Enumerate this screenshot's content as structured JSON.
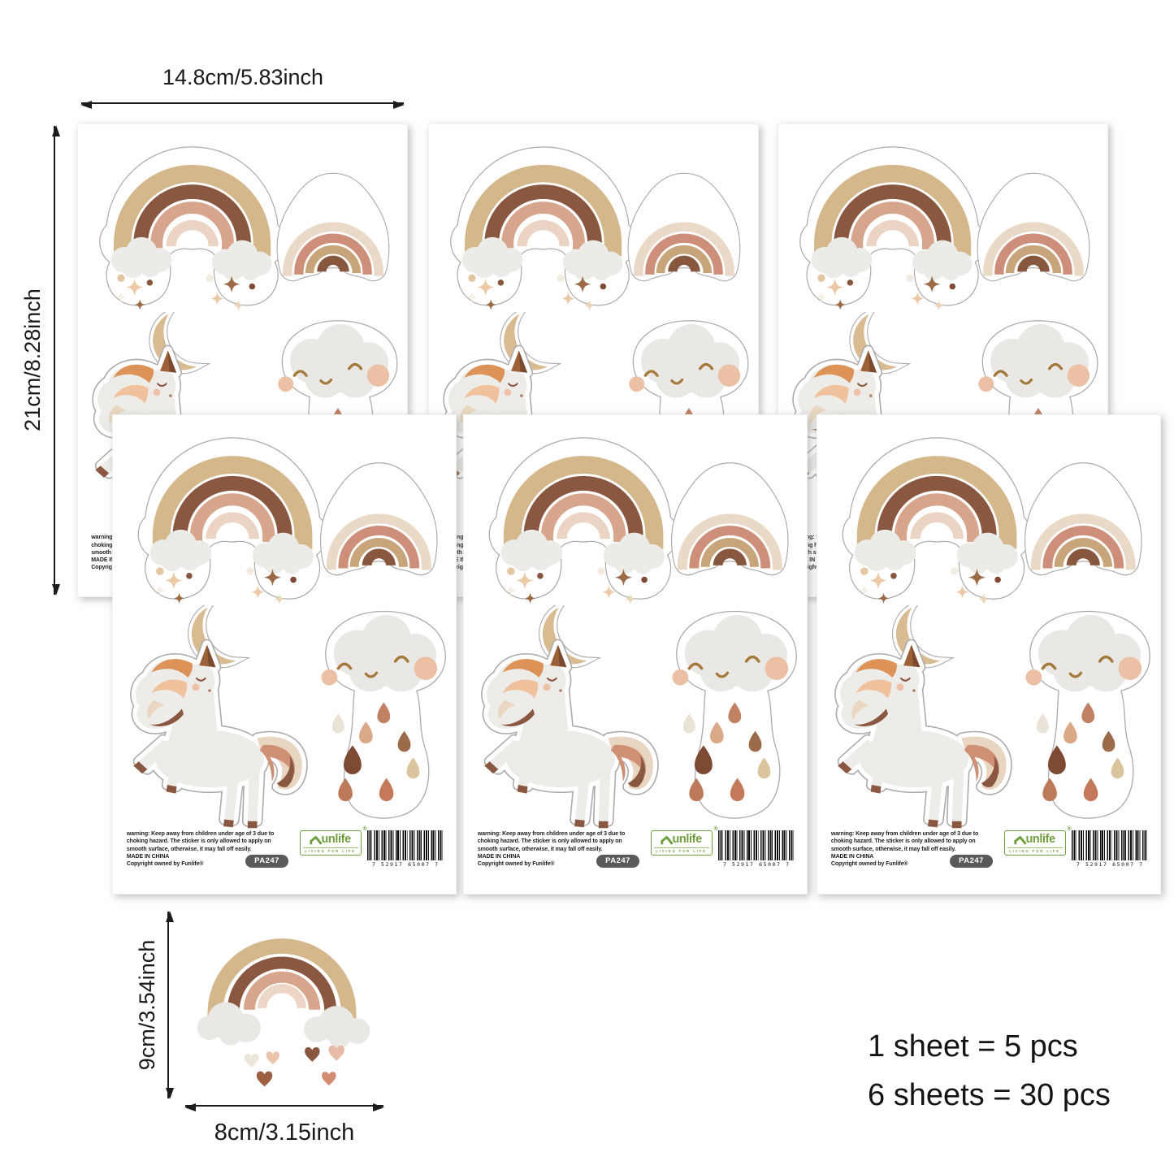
{
  "page": {
    "background": "#ffffff"
  },
  "annotations": {
    "sheet_width_label": "14.8cm/5.83inch",
    "sheet_height_label": "21cm/8.28inch",
    "sticker_height_label": "9cm/3.54inch",
    "sticker_width_label": "8cm/3.15inch"
  },
  "quantity_info": {
    "line1": "1 sheet = 5 pcs",
    "line2": "6 sheets = 30 pcs"
  },
  "sheet": {
    "warning_text": "warning: Keep away from children under age of 3 due to choking hazard. The sticker is only allowed to apply on smooth surface, otherwise, it may fall off easily.",
    "made_in": "MADE IN CHINA",
    "copyright_line": "Copyright owned by Funlife®",
    "sku": "PA247",
    "logo": {
      "brand": "unlife",
      "registered": "®",
      "tagline": "LIVING FOR LIFE"
    },
    "barcode_digits": "7 52917 65007 7",
    "stickers": [
      "big-rainbow-with-clouds-and-sparkles",
      "small-rainbow",
      "crescent-moon",
      "unicorn",
      "rain-cloud-with-drops"
    ]
  },
  "colors": {
    "brand_green": "#6f9e3e",
    "sku_pill": "#59595b",
    "tan": "#d5b78c",
    "dark_brown": "#8a5740",
    "salmon": "#d7a48c",
    "light_pink": "#ecd4c4",
    "cream": "#ead9c7",
    "cloud_gray": "#e9e8e4",
    "text": "#1a1a1a"
  }
}
